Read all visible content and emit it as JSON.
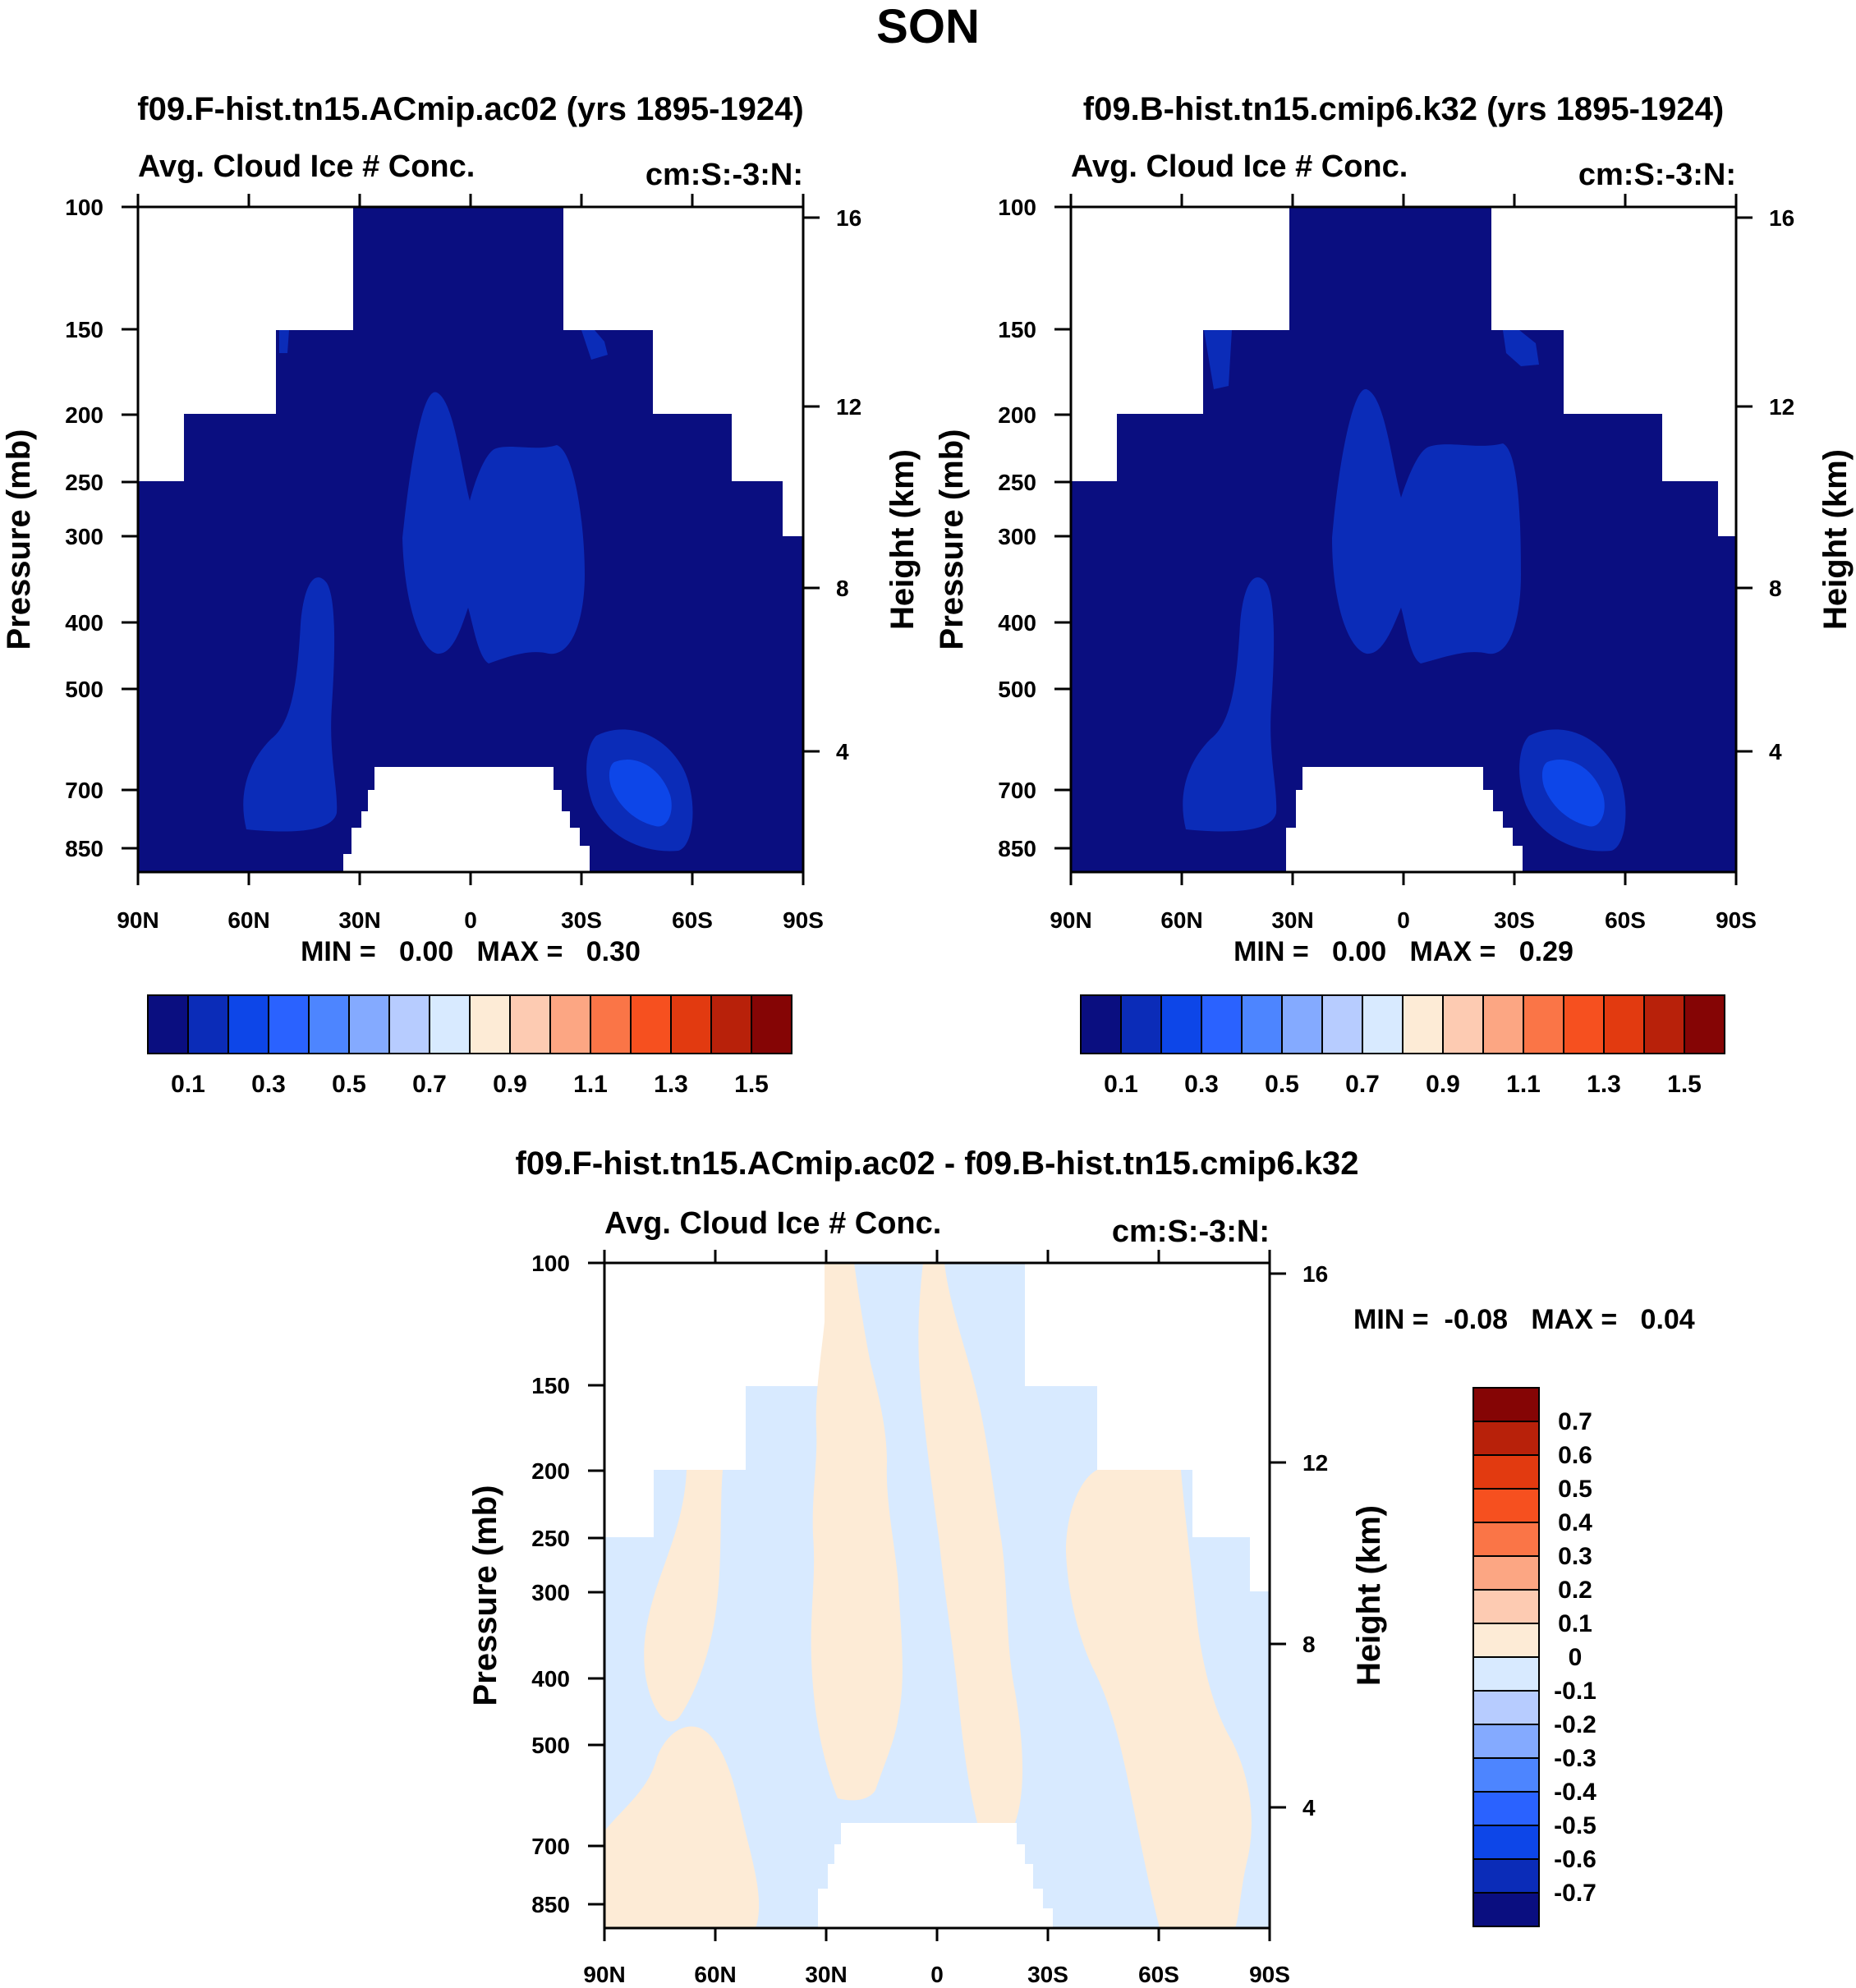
{
  "figure_title": "SON",
  "chart_data": [
    {
      "type": "heatmap",
      "title": "f09.F-hist.tn15.ACmip.ac02 (yrs 1895-1924)",
      "subtitle_left": "Avg. Cloud Ice # Conc.",
      "subtitle_right": "cm:S:-3:N:",
      "ylabel": "Pressure (mb)",
      "ylabel_right": "Height (km)",
      "x_ticks": [
        "90N",
        "60N",
        "30N",
        "0",
        "30S",
        "60S",
        "90S"
      ],
      "y_ticks": [
        "100",
        "150",
        "200",
        "250",
        "300",
        "400",
        "500",
        "700",
        "850"
      ],
      "y_right_ticks": [
        "16",
        "12",
        "8",
        "4"
      ],
      "stats_label": "MIN =   0.00   MAX =   0.30",
      "min": 0.0,
      "max": 0.3,
      "colorbar": {
        "orientation": "horizontal",
        "labels": [
          "0.1",
          "0.3",
          "0.5",
          "0.7",
          "0.9",
          "1.1",
          "1.3",
          "1.5"
        ],
        "colors": [
          "#0a0e80",
          "#0b2cb8",
          "#0d46e8",
          "#2a62ff",
          "#4d85ff",
          "#84aaff",
          "#b7ccff",
          "#d8eaff",
          "#fdebd6",
          "#fdcbb2",
          "#fca683",
          "#fa7547",
          "#f6501f",
          "#e23a10",
          "#b8210a",
          "#850505"
        ]
      }
    },
    {
      "type": "heatmap",
      "title": "f09.B-hist.tn15.cmip6.k32 (yrs 1895-1924)",
      "subtitle_left": "Avg. Cloud Ice # Conc.",
      "subtitle_right": "cm:S:-3:N:",
      "ylabel": "Pressure (mb)",
      "ylabel_right": "Height (km)",
      "x_ticks": [
        "90N",
        "60N",
        "30N",
        "0",
        "30S",
        "60S",
        "90S"
      ],
      "y_ticks": [
        "100",
        "150",
        "200",
        "250",
        "300",
        "400",
        "500",
        "700",
        "850"
      ],
      "y_right_ticks": [
        "16",
        "12",
        "8",
        "4"
      ],
      "stats_label": "MIN =   0.00   MAX =   0.29",
      "min": 0.0,
      "max": 0.29,
      "colorbar": {
        "orientation": "horizontal",
        "labels": [
          "0.1",
          "0.3",
          "0.5",
          "0.7",
          "0.9",
          "1.1",
          "1.3",
          "1.5"
        ],
        "colors": [
          "#0a0e80",
          "#0b2cb8",
          "#0d46e8",
          "#2a62ff",
          "#4d85ff",
          "#84aaff",
          "#b7ccff",
          "#d8eaff",
          "#fdebd6",
          "#fdcbb2",
          "#fca683",
          "#fa7547",
          "#f6501f",
          "#e23a10",
          "#b8210a",
          "#850505"
        ]
      }
    },
    {
      "type": "heatmap",
      "title": "f09.F-hist.tn15.ACmip.ac02 - f09.B-hist.tn15.cmip6.k32",
      "subtitle_left": "Avg. Cloud Ice # Conc.",
      "subtitle_right": "cm:S:-3:N:",
      "ylabel": "Pressure (mb)",
      "ylabel_right": "Height (km)",
      "x_ticks": [
        "90N",
        "60N",
        "30N",
        "0",
        "30S",
        "60S",
        "90S"
      ],
      "y_ticks": [
        "100",
        "150",
        "200",
        "250",
        "300",
        "400",
        "500",
        "700",
        "850"
      ],
      "y_right_ticks": [
        "16",
        "12",
        "8",
        "4"
      ],
      "stats_label": "MIN =  -0.08   MAX =   0.04",
      "min": -0.08,
      "max": 0.04,
      "colorbar": {
        "orientation": "vertical",
        "labels": [
          "0.7",
          "0.6",
          "0.5",
          "0.4",
          "0.3",
          "0.2",
          "0.1",
          "0",
          "-0.1",
          "-0.2",
          "-0.3",
          "-0.4",
          "-0.5",
          "-0.6",
          "-0.7"
        ],
        "colors": [
          "#850505",
          "#b8210a",
          "#e23a10",
          "#f6501f",
          "#fa7547",
          "#fca683",
          "#fdcbb2",
          "#fdebd6",
          "#d8eaff",
          "#b7ccff",
          "#84aaff",
          "#4d85ff",
          "#2a62ff",
          "#0d46e8",
          "#0b2cb8",
          "#0a0e80"
        ]
      }
    }
  ]
}
